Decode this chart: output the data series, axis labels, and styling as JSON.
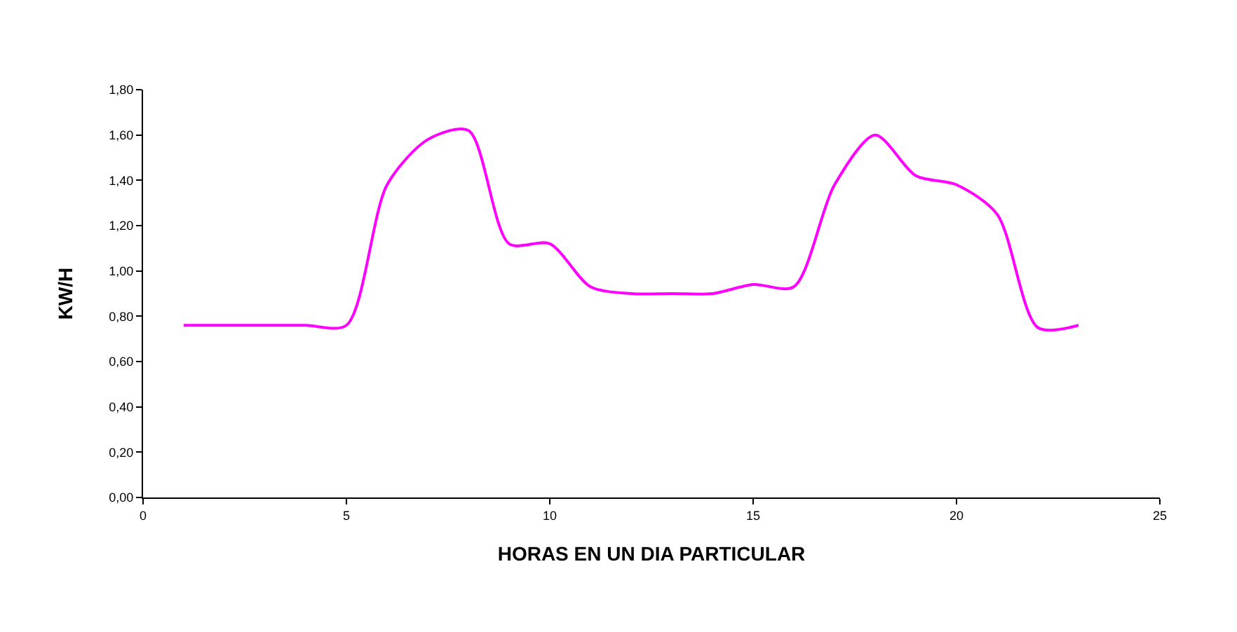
{
  "chart_data": {
    "type": "line",
    "xlabel": "HORAS EN UN DIA PARTICULAR",
    "ylabel": "KW/H",
    "x": [
      1,
      2,
      3,
      4,
      5,
      6,
      7,
      8,
      9,
      10,
      11,
      12,
      13,
      14,
      15,
      16,
      17,
      18,
      19,
      20,
      21,
      22,
      23
    ],
    "series": [
      {
        "color": "#ff00ff",
        "values": [
          0.76,
          0.76,
          0.76,
          0.76,
          0.76,
          1.38,
          1.58,
          1.62,
          1.12,
          1.12,
          0.93,
          0.9,
          0.9,
          0.9,
          0.94,
          0.93,
          1.38,
          1.6,
          1.42,
          1.38,
          1.25,
          0.75,
          0.76
        ]
      }
    ],
    "xlim": [
      0,
      25
    ],
    "xticks": [
      0,
      5,
      10,
      15,
      20,
      25
    ],
    "ylim": [
      0,
      1.8
    ],
    "yticks": [
      {
        "value": 0,
        "label": "0,00"
      },
      {
        "value": 0.2,
        "label": "0,20"
      },
      {
        "value": 0.4,
        "label": "0,40"
      },
      {
        "value": 0.6,
        "label": "0,60"
      },
      {
        "value": 0.8,
        "label": "0,80"
      },
      {
        "value": 1,
        "label": "1,00"
      },
      {
        "value": 1.2,
        "label": "1,20"
      },
      {
        "value": 1.4,
        "label": "1,40"
      },
      {
        "value": 1.6,
        "label": "1,60"
      },
      {
        "value": 1.8,
        "label": "1,80"
      }
    ],
    "grid": false,
    "marker": "none",
    "line_style": "solid"
  }
}
